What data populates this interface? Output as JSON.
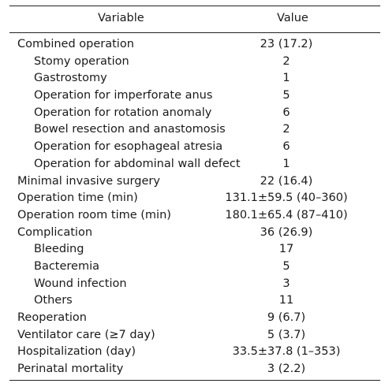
{
  "header": {
    "variable_label": "Variable",
    "value_label": "Value"
  },
  "rows": [
    {
      "variable": "Combined operation",
      "value": "23 (17.2)",
      "indent": false
    },
    {
      "variable": "Stomy operation",
      "value": "2",
      "indent": true
    },
    {
      "variable": "Gastrostomy",
      "value": "1",
      "indent": true
    },
    {
      "variable": "Operation for imperforate anus",
      "value": "5",
      "indent": true
    },
    {
      "variable": "Operation for rotation anomaly",
      "value": "6",
      "indent": true
    },
    {
      "variable": "Bowel resection and anastomosis",
      "value": "2",
      "indent": true
    },
    {
      "variable": "Operation for esophageal atresia",
      "value": "6",
      "indent": true
    },
    {
      "variable": "Operation for abdominal wall defect",
      "value": "1",
      "indent": true
    },
    {
      "variable": "Minimal invasive surgery",
      "value": "22 (16.4)",
      "indent": false
    },
    {
      "variable": "Operation time (min)",
      "value": "131.1±59.5 (40–360)",
      "indent": false
    },
    {
      "variable": "Operation room time (min)",
      "value": "180.1±65.4 (87–410)",
      "indent": false
    },
    {
      "variable": "Complication",
      "value": "36 (26.9)",
      "indent": false
    },
    {
      "variable": "Bleeding",
      "value": "17",
      "indent": true
    },
    {
      "variable": "Bacteremia",
      "value": "5",
      "indent": true
    },
    {
      "variable": "Wound infection",
      "value": "3",
      "indent": true
    },
    {
      "variable": "Others",
      "value": "11",
      "indent": true
    },
    {
      "variable": "Reoperation",
      "value": "9 (6.7)",
      "indent": false
    },
    {
      "variable": "Ventilator care (≥7 day)",
      "value": "5 (3.7)",
      "indent": false
    },
    {
      "variable": "Hospitalization (day)",
      "value": "33.5±37.8 (1–353)",
      "indent": false
    },
    {
      "variable": "Perinatal mortality",
      "value": "3 (2.2)",
      "indent": false
    }
  ]
}
